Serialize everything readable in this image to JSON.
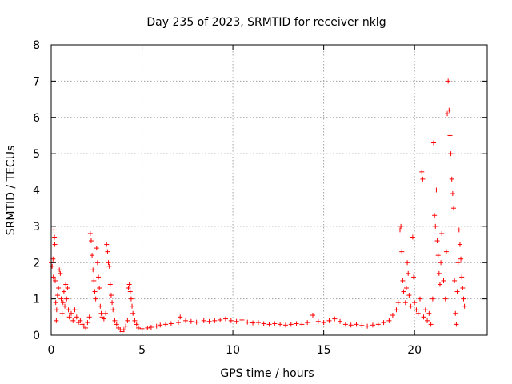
{
  "chart_data": {
    "type": "scatter",
    "title": "Day 235 of 2023, SRMTID for receiver nklg",
    "xlabel": "GPS time / hours",
    "ylabel": "SRMTID / TECUs",
    "xlim": [
      0,
      24
    ],
    "ylim": [
      0,
      8
    ],
    "xticks": [
      0,
      5,
      10,
      15,
      20
    ],
    "yticks": [
      0,
      1,
      2,
      3,
      4,
      5,
      6,
      7,
      8
    ],
    "grid": true,
    "marker": "+",
    "series": [
      {
        "name": "SRMTID",
        "color": "#ff0000",
        "points": [
          [
            0.0,
            2.0
          ],
          [
            0.05,
            1.9
          ],
          [
            0.1,
            2.1
          ],
          [
            0.12,
            1.6
          ],
          [
            0.15,
            2.9
          ],
          [
            0.18,
            2.7
          ],
          [
            0.2,
            2.5
          ],
          [
            0.22,
            1.5
          ],
          [
            0.25,
            0.9
          ],
          [
            0.28,
            0.4
          ],
          [
            0.3,
            0.7
          ],
          [
            0.35,
            1.1
          ],
          [
            0.4,
            1.3
          ],
          [
            0.45,
            1.8
          ],
          [
            0.5,
            1.7
          ],
          [
            0.55,
            1.0
          ],
          [
            0.6,
            0.6
          ],
          [
            0.65,
            0.9
          ],
          [
            0.7,
            1.2
          ],
          [
            0.75,
            0.8
          ],
          [
            0.8,
            1.4
          ],
          [
            0.85,
            1.0
          ],
          [
            0.9,
            1.3
          ],
          [
            0.95,
            0.7
          ],
          [
            1.0,
            0.5
          ],
          [
            1.1,
            0.6
          ],
          [
            1.2,
            0.4
          ],
          [
            1.3,
            0.7
          ],
          [
            1.4,
            0.5
          ],
          [
            1.5,
            0.35
          ],
          [
            1.6,
            0.4
          ],
          [
            1.7,
            0.3
          ],
          [
            1.8,
            0.25
          ],
          [
            1.9,
            0.2
          ],
          [
            2.0,
            0.35
          ],
          [
            2.1,
            0.5
          ],
          [
            2.15,
            2.8
          ],
          [
            2.2,
            2.6
          ],
          [
            2.25,
            2.2
          ],
          [
            2.3,
            1.8
          ],
          [
            2.35,
            1.5
          ],
          [
            2.4,
            1.2
          ],
          [
            2.45,
            1.0
          ],
          [
            2.5,
            2.4
          ],
          [
            2.55,
            2.0
          ],
          [
            2.6,
            1.6
          ],
          [
            2.65,
            1.3
          ],
          [
            2.7,
            0.8
          ],
          [
            2.75,
            0.6
          ],
          [
            2.8,
            0.5
          ],
          [
            2.9,
            0.45
          ],
          [
            3.0,
            0.6
          ],
          [
            3.05,
            2.5
          ],
          [
            3.1,
            2.3
          ],
          [
            3.15,
            2.0
          ],
          [
            3.2,
            1.9
          ],
          [
            3.25,
            1.4
          ],
          [
            3.3,
            1.1
          ],
          [
            3.35,
            0.9
          ],
          [
            3.4,
            0.7
          ],
          [
            3.5,
            0.4
          ],
          [
            3.6,
            0.3
          ],
          [
            3.7,
            0.2
          ],
          [
            3.8,
            0.15
          ],
          [
            3.9,
            0.1
          ],
          [
            4.0,
            0.15
          ],
          [
            4.1,
            0.25
          ],
          [
            4.2,
            0.4
          ],
          [
            4.25,
            1.3
          ],
          [
            4.3,
            1.4
          ],
          [
            4.35,
            1.2
          ],
          [
            4.4,
            1.0
          ],
          [
            4.45,
            0.8
          ],
          [
            4.5,
            0.6
          ],
          [
            4.6,
            0.4
          ],
          [
            4.7,
            0.3
          ],
          [
            4.8,
            0.2
          ],
          [
            5.0,
            0.18
          ],
          [
            5.3,
            0.2
          ],
          [
            5.5,
            0.22
          ],
          [
            5.8,
            0.25
          ],
          [
            6.0,
            0.28
          ],
          [
            6.3,
            0.3
          ],
          [
            6.6,
            0.32
          ],
          [
            7.0,
            0.35
          ],
          [
            7.1,
            0.5
          ],
          [
            7.4,
            0.4
          ],
          [
            7.7,
            0.38
          ],
          [
            8.0,
            0.36
          ],
          [
            8.4,
            0.4
          ],
          [
            8.7,
            0.38
          ],
          [
            9.0,
            0.4
          ],
          [
            9.3,
            0.42
          ],
          [
            9.6,
            0.45
          ],
          [
            9.9,
            0.4
          ],
          [
            10.2,
            0.38
          ],
          [
            10.5,
            0.42
          ],
          [
            10.8,
            0.36
          ],
          [
            11.1,
            0.34
          ],
          [
            11.4,
            0.35
          ],
          [
            11.7,
            0.32
          ],
          [
            12.0,
            0.3
          ],
          [
            12.3,
            0.32
          ],
          [
            12.6,
            0.3
          ],
          [
            12.9,
            0.28
          ],
          [
            13.2,
            0.3
          ],
          [
            13.5,
            0.32
          ],
          [
            13.8,
            0.3
          ],
          [
            14.1,
            0.35
          ],
          [
            14.4,
            0.55
          ],
          [
            14.7,
            0.38
          ],
          [
            15.0,
            0.35
          ],
          [
            15.3,
            0.4
          ],
          [
            15.6,
            0.45
          ],
          [
            15.9,
            0.38
          ],
          [
            16.2,
            0.3
          ],
          [
            16.5,
            0.28
          ],
          [
            16.8,
            0.3
          ],
          [
            17.1,
            0.27
          ],
          [
            17.4,
            0.25
          ],
          [
            17.7,
            0.28
          ],
          [
            18.0,
            0.3
          ],
          [
            18.3,
            0.35
          ],
          [
            18.6,
            0.4
          ],
          [
            18.8,
            0.55
          ],
          [
            19.0,
            0.7
          ],
          [
            19.1,
            0.9
          ],
          [
            19.2,
            2.9
          ],
          [
            19.25,
            3.0
          ],
          [
            19.3,
            2.3
          ],
          [
            19.35,
            1.5
          ],
          [
            19.4,
            1.2
          ],
          [
            19.5,
            0.9
          ],
          [
            19.55,
            1.3
          ],
          [
            19.6,
            2.0
          ],
          [
            19.65,
            1.7
          ],
          [
            19.7,
            1.1
          ],
          [
            19.8,
            0.8
          ],
          [
            19.9,
            2.7
          ],
          [
            19.95,
            1.6
          ],
          [
            20.0,
            0.9
          ],
          [
            20.1,
            0.7
          ],
          [
            20.2,
            0.6
          ],
          [
            20.3,
            1.0
          ],
          [
            20.4,
            4.5
          ],
          [
            20.45,
            4.3
          ],
          [
            20.5,
            0.5
          ],
          [
            20.6,
            0.7
          ],
          [
            20.7,
            0.4
          ],
          [
            20.8,
            0.6
          ],
          [
            20.9,
            0.3
          ],
          [
            21.0,
            1.0
          ],
          [
            21.05,
            5.3
          ],
          [
            21.1,
            3.3
          ],
          [
            21.15,
            3.0
          ],
          [
            21.2,
            4.0
          ],
          [
            21.25,
            2.6
          ],
          [
            21.3,
            2.2
          ],
          [
            21.35,
            1.7
          ],
          [
            21.4,
            1.4
          ],
          [
            21.45,
            2.0
          ],
          [
            21.5,
            2.8
          ],
          [
            21.6,
            1.5
          ],
          [
            21.7,
            1.0
          ],
          [
            21.75,
            2.3
          ],
          [
            21.8,
            6.1
          ],
          [
            21.85,
            7.0
          ],
          [
            21.9,
            6.2
          ],
          [
            21.95,
            5.5
          ],
          [
            22.0,
            5.0
          ],
          [
            22.05,
            4.3
          ],
          [
            22.1,
            3.9
          ],
          [
            22.15,
            3.5
          ],
          [
            22.2,
            1.5
          ],
          [
            22.25,
            0.6
          ],
          [
            22.3,
            0.3
          ],
          [
            22.35,
            1.2
          ],
          [
            22.4,
            2.0
          ],
          [
            22.45,
            2.9
          ],
          [
            22.5,
            2.5
          ],
          [
            22.55,
            2.1
          ],
          [
            22.6,
            1.6
          ],
          [
            22.65,
            1.3
          ],
          [
            22.7,
            1.0
          ],
          [
            22.75,
            0.8
          ]
        ]
      }
    ]
  }
}
